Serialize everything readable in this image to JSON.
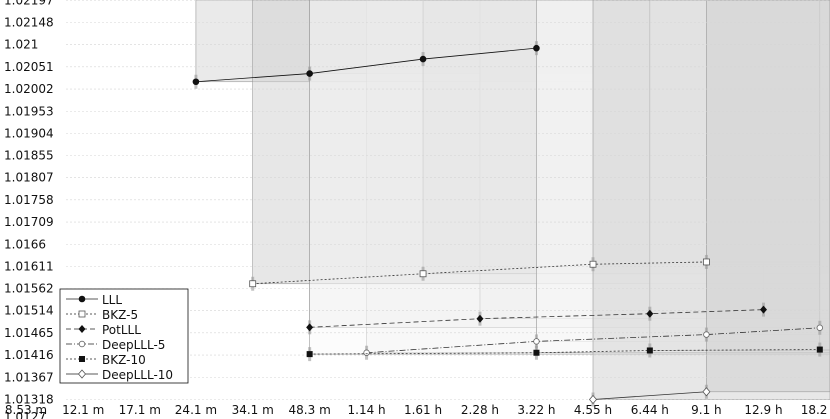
{
  "chart_data": {
    "type": "line",
    "title": "",
    "xlabel": "",
    "ylabel": "",
    "x_scale": "log",
    "x_ticks": [
      "8.53 m",
      "12.1 m",
      "17.1 m",
      "24.1 m",
      "34.1 m",
      "48.3 m",
      "1.14 h",
      "1.61 h",
      "2.28 h",
      "3.22 h",
      "4.55 h",
      "6.44 h",
      "9.1 h",
      "12.9 h",
      "18.2 h"
    ],
    "x_tick_minutes": [
      8.53,
      12.1,
      17.1,
      24.1,
      34.1,
      48.3,
      68.4,
      96.6,
      136.8,
      193.2,
      273,
      386.4,
      546,
      774,
      1092
    ],
    "y_ticks": [
      "1.01318",
      "1.01367",
      "1.01416",
      "1.01465",
      "1.01514",
      "1.01562",
      "1.01611",
      "1.0166",
      "1.01709",
      "1.01758",
      "1.01807",
      "1.01855",
      "1.01904",
      "1.01953",
      "1.02002",
      "1.02051",
      "1.021",
      "1.02148",
      "1.02197"
    ],
    "ylim": [
      1.01318,
      1.02197
    ],
    "bottom_left_partial_label": "1.0127",
    "legend_position": "bottom-left",
    "grid": true,
    "series": [
      {
        "name": "LLL",
        "marker": "filled-circle",
        "line": "solid",
        "box_fill": "#d8d8d8",
        "x_minutes": [
          24.1,
          48.3,
          96.6,
          193.2
        ],
        "y": [
          1.02018,
          1.02036,
          1.02068,
          1.02092
        ]
      },
      {
        "name": "BKZ-5",
        "marker": "open-square",
        "line": "dotted",
        "box_fill": "#d0d0d0",
        "x_minutes": [
          34.1,
          96.6,
          273,
          546
        ],
        "y": [
          1.01573,
          1.01595,
          1.01616,
          1.01621
        ]
      },
      {
        "name": "PotLLL",
        "marker": "filled-diamond",
        "line": "dashed",
        "box_fill": "#e6e6e6",
        "x_minutes": [
          48.3,
          136.8,
          386.4,
          774
        ],
        "y": [
          1.01477,
          1.01496,
          1.01507,
          1.01516
        ]
      },
      {
        "name": "DeepLLL-5",
        "marker": "open-circle",
        "line": "dash-dot",
        "box_fill": "#f0f0f0",
        "x_minutes": [
          68.4,
          193.2,
          546,
          1092
        ],
        "y": [
          1.01421,
          1.01446,
          1.01461,
          1.01476
        ]
      },
      {
        "name": "BKZ-10",
        "marker": "filled-square",
        "line": "dotted",
        "box_fill": "#fafafa",
        "x_minutes": [
          48.3,
          193.2,
          386.4,
          1092
        ],
        "y": [
          1.01418,
          1.01421,
          1.01426,
          1.01428
        ]
      },
      {
        "name": "DeepLLL-10",
        "marker": "open-diamond",
        "line": "solid",
        "box_fill": "#cfcfcf",
        "x_minutes": [
          273,
          546
        ],
        "y": [
          1.01318,
          1.01335
        ]
      }
    ]
  }
}
